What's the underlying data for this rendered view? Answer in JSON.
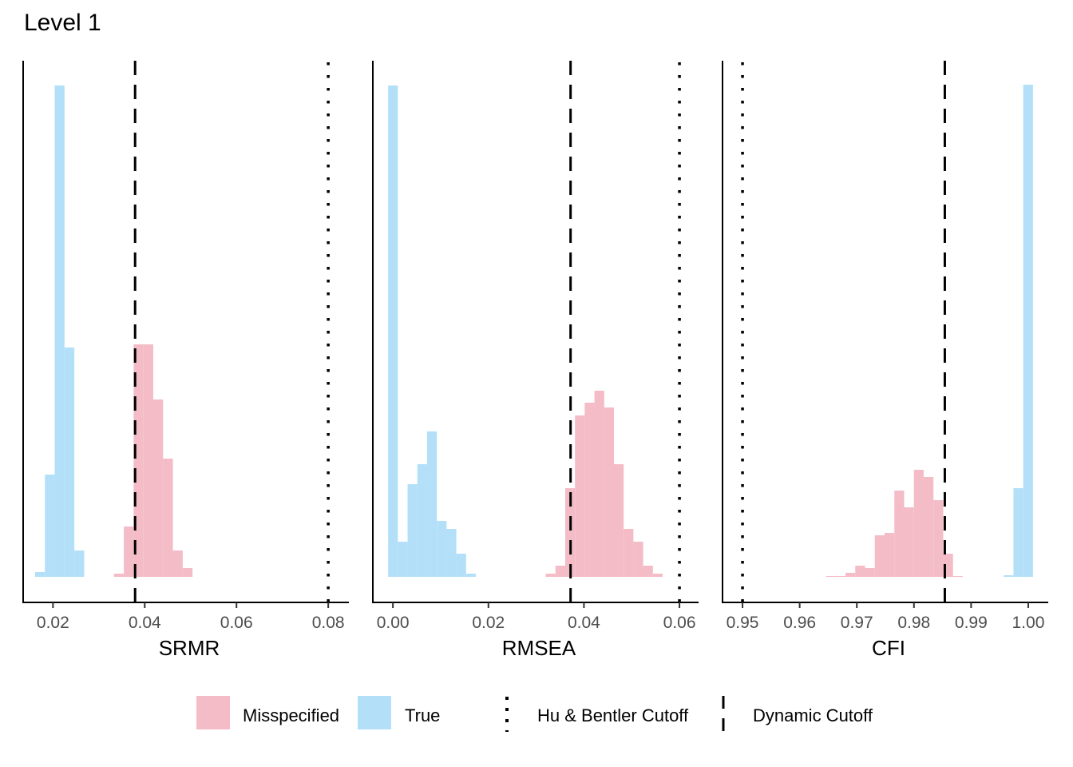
{
  "title": "Level 1",
  "colors": {
    "misspecified": "#f4bcc6",
    "true": "#b3e0f8",
    "line": "#000000"
  },
  "legend": {
    "misspecified": "Misspecified",
    "true": "True",
    "hu_bentler": "Hu & Bentler Cutoff",
    "dynamic": "Dynamic Cutoff"
  },
  "chart_data": [
    {
      "type": "histogram",
      "xlabel": "SRMR",
      "xlim": [
        0.0135,
        0.0845
      ],
      "ticks": [
        "0.02",
        "0.04",
        "0.06",
        "0.08"
      ],
      "tick_values": [
        0.02,
        0.04,
        0.06,
        0.08
      ],
      "ylim": [
        0,
        640
      ],
      "hu_bentler_cutoff": 0.08,
      "dynamic_cutoff": 0.0379,
      "series": [
        {
          "name": "True",
          "bin_start": 0.0161,
          "bin_width": 0.00214,
          "counts": [
            6,
            128,
            615,
            287,
            33
          ]
        },
        {
          "name": "Misspecified",
          "bin_start": 0.0333,
          "bin_width": 0.00214,
          "counts": [
            4,
            63,
            291,
            291,
            222,
            148,
            33,
            11
          ]
        }
      ]
    },
    {
      "type": "histogram",
      "xlabel": "RMSEA",
      "xlim": [
        -0.0042,
        0.064
      ],
      "ticks": [
        "0.00",
        "0.02",
        "0.04",
        "0.06"
      ],
      "tick_values": [
        0.0,
        0.02,
        0.04,
        0.06
      ],
      "ylim": [
        0,
        640
      ],
      "hu_bentler_cutoff": 0.06,
      "dynamic_cutoff": 0.0372,
      "series": [
        {
          "name": "True",
          "bin_start": -0.001,
          "bin_width": 0.00204,
          "counts": [
            615,
            44,
            116,
            141,
            182,
            70,
            60,
            29,
            4
          ]
        },
        {
          "name": "Misspecified",
          "bin_start": 0.032,
          "bin_width": 0.00204,
          "counts": [
            4,
            14,
            111,
            202,
            218,
            233,
            212,
            141,
            60,
            44,
            14,
            4
          ]
        }
      ]
    },
    {
      "type": "histogram",
      "xlabel": "CFI",
      "xlim": [
        0.9465,
        1.0035
      ],
      "ticks": [
        "0.95",
        "0.96",
        "0.97",
        "0.98",
        "0.99",
        "1.00"
      ],
      "tick_values": [
        0.95,
        0.96,
        0.97,
        0.98,
        0.99,
        1.0
      ],
      "ylim": [
        0,
        640
      ],
      "hu_bentler_cutoff": 0.95,
      "dynamic_cutoff": 0.9854,
      "series": [
        {
          "name": "Misspecified",
          "bin_start": 0.9646,
          "bin_width": 0.00171,
          "counts": [
            1,
            1,
            5,
            14,
            11,
            52,
            55,
            108,
            87,
            134,
            125,
            96,
            29,
            1
          ]
        },
        {
          "name": "True",
          "bin_start": 0.9957,
          "bin_width": 0.00171,
          "counts": [
            2,
            111,
            616
          ]
        }
      ]
    }
  ]
}
